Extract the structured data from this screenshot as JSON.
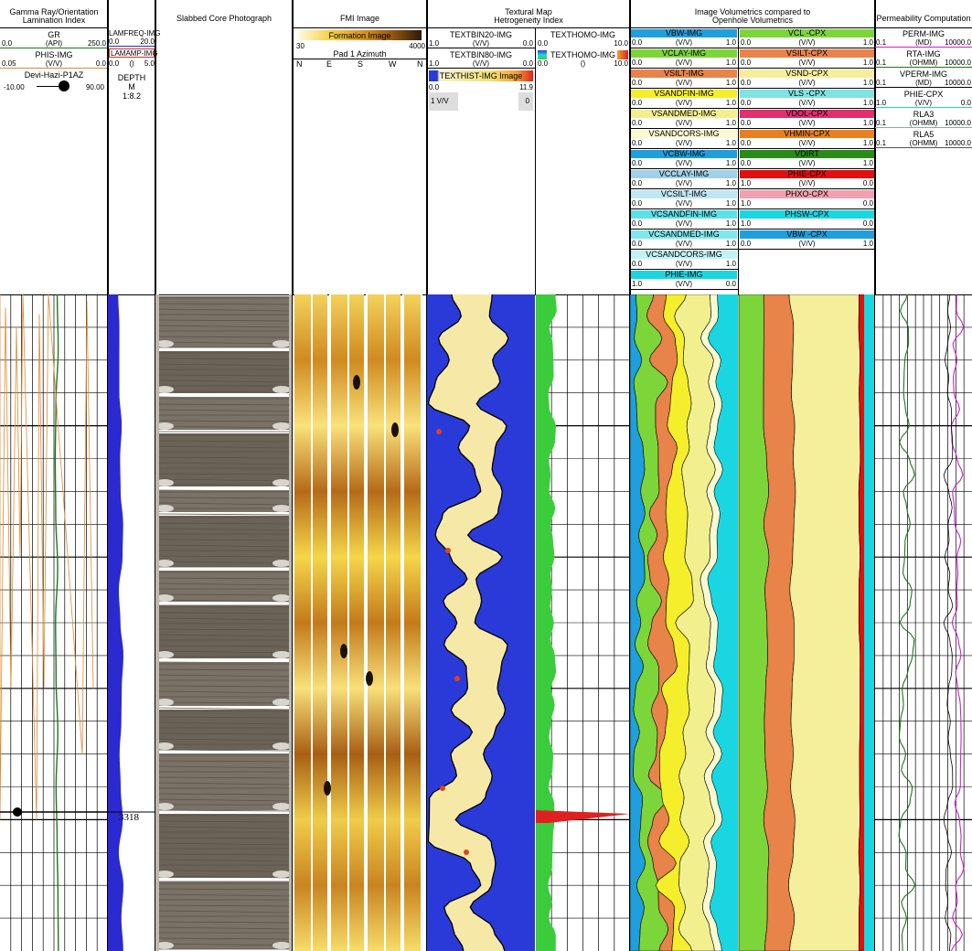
{
  "colors": {
    "gr": "#1a7a1a",
    "phis": "#e08a30",
    "lamfreq": "#2a2ad0",
    "perm": "#d020d0",
    "rta": "#1a7a1a",
    "vperm": "#000000",
    "rla3": "#9ad",
    "rla5": "#555",
    "vbw": "#1f9fdc",
    "clay": "#7cd63a",
    "silt": "#e8834a",
    "sandfin": "#f5ee2a",
    "sandmed": "#f2ef8f",
    "sandcors": "#fafad2",
    "vls": "#7ee3e3",
    "vdol": "#e0306e",
    "vhmin": "#e88020",
    "phie": "#1ad6e0",
    "porosity_red": "#e01010"
  },
  "track1": {
    "title_line1": "Gamma Ray/Orientation",
    "title_line2": "Lamination Index",
    "gr": {
      "name": "GR",
      "min": "0.0",
      "unit": "(API)",
      "max": "250.0"
    },
    "phis": {
      "name": "PHIS-IMG",
      "min": "0.05",
      "unit": "(V/V)",
      "max": "0.0"
    },
    "devi": {
      "name": "Devi-Hazi-P1AZ",
      "min": "-10.00",
      "max": "90.00"
    }
  },
  "track2": {
    "lamfreq": {
      "name": "LAMFREQ-IMG",
      "min": "0.0",
      "max": "20.0"
    },
    "lamamp": {
      "name": "LAMAMP-IMG",
      "min": "0.0",
      "unit": "()",
      "max": "5.0"
    },
    "depth_label": "DEPTH",
    "depth_unit": "M",
    "scale": "1:8.2",
    "depth_marker": "3318"
  },
  "track3": {
    "title": "Slabbed Core Photograph"
  },
  "track4": {
    "title": "FMI Image",
    "image_label": "Formation Image",
    "scale_min": "30",
    "scale_max": "4000",
    "azimuth_label": "Pad 1 Azimuth",
    "compass": [
      "N",
      "E",
      "S",
      "W",
      "N"
    ]
  },
  "track5": {
    "title_line1": "Textural Map",
    "title_line2": "Hetrogeneity Index",
    "bin20": {
      "name": "TEXTBIN20-IMG",
      "min": "1.0",
      "unit": "(V/V)",
      "max": "0.0"
    },
    "bin80": {
      "name": "TEXTBIN80-IMG",
      "min": "1.0",
      "unit": "(V/V)",
      "max": "0.0"
    },
    "hist": {
      "name": "TEXTHIST-IMG Image",
      "min": "0.0",
      "max": "11.9",
      "unit_left": "1 V/V",
      "unit_right": "0"
    }
  },
  "track6": {
    "homo1": {
      "name": "TEXTHOMO-IMG",
      "min": "0.0",
      "max": "10.0"
    },
    "homo2": {
      "name": "TEXTHOMO-IMG",
      "min": "0.0",
      "unit": "()",
      "max": "10.0"
    }
  },
  "track7": {
    "title_line1": "Image Volumetrics compared to",
    "title_line2": "Openhole Volumetrics",
    "img_curves": [
      {
        "name": "VBW-IMG",
        "min": "0.0",
        "unit": "(V/V)",
        "max": "1.0",
        "color": "#1f9fdc"
      },
      {
        "name": "VCLAY-IMG",
        "min": "0.0",
        "unit": "(V/V)",
        "max": "1.0",
        "color": "#7cd63a"
      },
      {
        "name": "VSILT-IMG",
        "min": "0.0",
        "unit": "(V/V)",
        "max": "1.0",
        "color": "#e8834a"
      },
      {
        "name": "VSANDFIN-IMG",
        "min": "0.0",
        "unit": "(V/V)",
        "max": "1.0",
        "color": "#f5ee2a"
      },
      {
        "name": "VSANDMED-IMG",
        "min": "0.0",
        "unit": "(V/V)",
        "max": "1.0",
        "color": "#f2ef8f"
      },
      {
        "name": "VSANDCORS-IMG",
        "min": "0.0",
        "unit": "(V/V)",
        "max": "1.0",
        "color": "#fafad2"
      },
      {
        "name": "VCBW-IMG",
        "min": "0.0",
        "unit": "(V/V)",
        "max": "1.0",
        "color": "#1f9fdc"
      },
      {
        "name": "VCCLAY-IMG",
        "min": "0.0",
        "unit": "(V/V)",
        "max": "1.0",
        "color": "#9fd0e8"
      },
      {
        "name": "VCSILT-IMG",
        "min": "0.0",
        "unit": "(V/V)",
        "max": "1.0",
        "color": "#bfe6f2"
      },
      {
        "name": "VCSANDFIN-IMG",
        "min": "0.0",
        "unit": "(V/V)",
        "max": "1.0",
        "color": "#5ee0e8"
      },
      {
        "name": "VCSANDMED-IMG",
        "min": "0.0",
        "unit": "(V/V)",
        "max": "1.0",
        "color": "#7ee8ee"
      },
      {
        "name": "VCSANDCORS-IMG",
        "min": "0.0",
        "unit": "(V/V)",
        "max": "1.0",
        "color": "#bff3f5"
      },
      {
        "name": "PHIE-IMG",
        "min": "1.0",
        "unit": "(V/V)",
        "max": "0.0",
        "color": "#1ad6e0"
      }
    ],
    "cpx_curves": [
      {
        "name": "VCL -CPX",
        "min": "0.0",
        "unit": "(V/V)",
        "max": "1.0",
        "color": "#7cd63a"
      },
      {
        "name": "VSILT-CPX",
        "min": "0.0",
        "unit": "(V/V)",
        "max": "1.0",
        "color": "#e8834a"
      },
      {
        "name": "VSND-CPX",
        "min": "0.0",
        "unit": "(V/V)",
        "max": "1.0",
        "color": "#f5ee9a"
      },
      {
        "name": "VLS -CPX",
        "min": "0.0",
        "unit": "(V/V)",
        "max": "1.0",
        "color": "#7ee3e3"
      },
      {
        "name": "VDOL-CPX",
        "min": "0.0",
        "unit": "(V/V)",
        "max": "1.0",
        "color": "#e0306e"
      },
      {
        "name": "VHMIN-CPX",
        "min": "0.0",
        "unit": "(V/V)",
        "max": "1.0",
        "color": "#e88020"
      },
      {
        "name": "VDIRT",
        "min": "0.0",
        "unit": "(V/V)",
        "max": "1.0",
        "color": "#2a8a1a"
      },
      {
        "name": "PHIE-CPX",
        "min": "1.0",
        "unit": "(V/V)",
        "max": "0.0",
        "color": "#e01010"
      },
      {
        "name": "PHXO-CPX",
        "min": "1.0",
        "unit": "",
        "max": "0.0",
        "color": "#f0a0b0"
      },
      {
        "name": "PHSW-CPX",
        "min": "1.0",
        "unit": "",
        "max": "0.0",
        "color": "#1ad6e0"
      },
      {
        "name": "VBW -CPX",
        "min": "0.0",
        "unit": "(V/V)",
        "max": "1.0",
        "color": "#1f9fdc"
      }
    ]
  },
  "track8": {
    "title": "Permeability Computation",
    "curves": [
      {
        "name": "PERM-IMG",
        "min": "0.1",
        "unit": "(MD)",
        "max": "10000.0",
        "color": "#d020d0"
      },
      {
        "name": "RTA-IMG",
        "min": "0.1",
        "unit": "(OHMM)",
        "max": "10000.0",
        "color": "#1a7a1a"
      },
      {
        "name": "VPERM-IMG",
        "min": "0.1",
        "unit": "(MD)",
        "max": "10000.0",
        "color": "#000000"
      },
      {
        "name": "PHIE-CPX",
        "min": "1.0",
        "unit": "(V/V)",
        "max": "0.0",
        "color": "#1ad6e0"
      },
      {
        "name": "RLA3",
        "min": "0.1",
        "unit": "(OHMM)",
        "max": "10000.0",
        "color": "#8ab"
      },
      {
        "name": "RLA5",
        "min": "0.1",
        "unit": "(OHMM)",
        "max": "10000.0",
        "color": "#555"
      }
    ]
  }
}
